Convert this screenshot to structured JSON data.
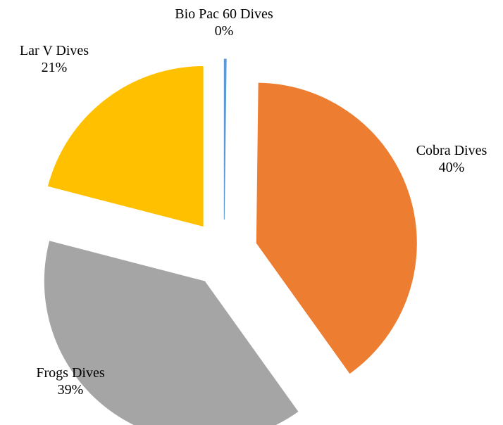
{
  "chart_data": {
    "type": "pie",
    "title": "",
    "exploded": true,
    "slices": [
      {
        "label": "Bio Pac 60 Dives",
        "value": 0.2,
        "percent_label": "0%",
        "color": "#5B9BD5"
      },
      {
        "label": "Cobra Dives",
        "value": 40,
        "percent_label": "40%",
        "color": "#ED7D31"
      },
      {
        "label": "Frogs Dives",
        "value": 39,
        "percent_label": "39%",
        "color": "#A5A5A5"
      },
      {
        "label": "Lar V Dives",
        "value": 21,
        "percent_label": "21%",
        "color": "#FFC000"
      }
    ]
  }
}
